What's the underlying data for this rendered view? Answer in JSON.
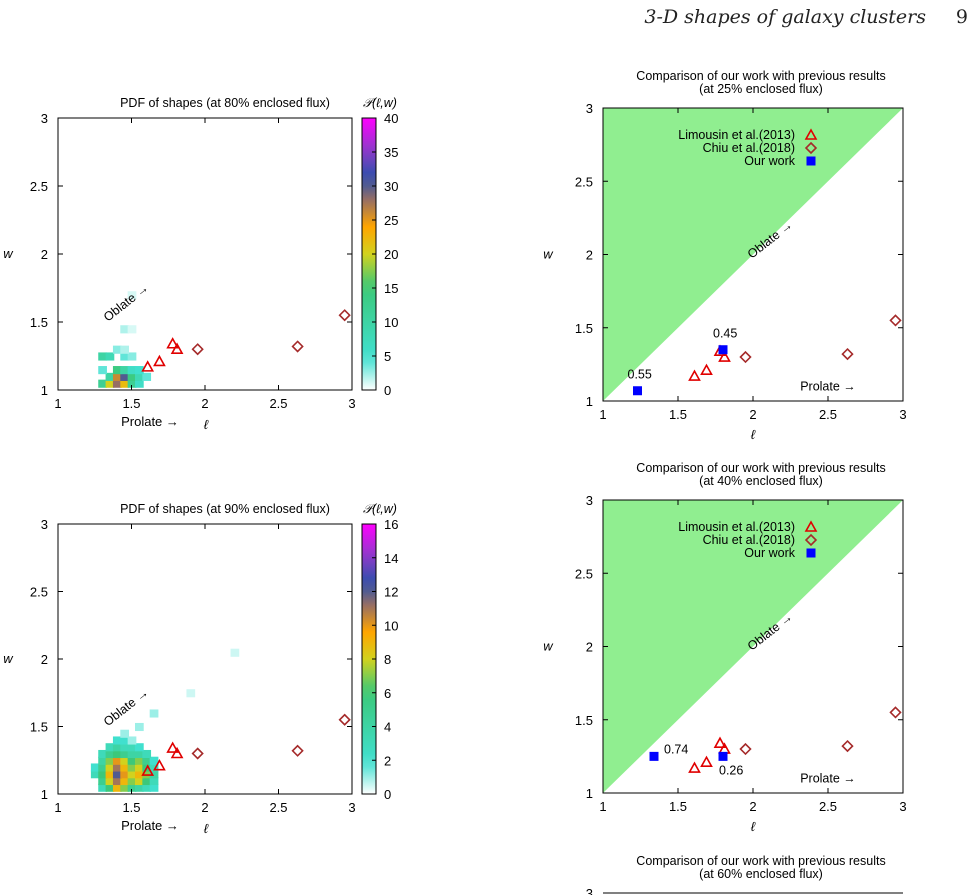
{
  "header": {
    "title": "3-D shapes of galaxy clusters",
    "page_number": "9"
  },
  "chart_data": [
    {
      "type": "heatmap",
      "title": "PDF of shapes (at 80% enclosed flux)",
      "xlabel": "ℓ",
      "ylabel": "w",
      "xlim": [
        1,
        3
      ],
      "ylim": [
        1,
        3
      ],
      "xticks": [
        "1",
        "1.5",
        "2",
        "2.5",
        "3"
      ],
      "yticks": [
        "1",
        "1.5",
        "2",
        "2.5",
        "3"
      ],
      "annotations": {
        "oblate": "Oblate →",
        "prolate": "Prolate →"
      },
      "colorbar": {
        "label": "𝒫(ℓ,w)",
        "range": [
          0,
          40
        ],
        "ticks": [
          "0",
          "5",
          "10",
          "15",
          "20",
          "25",
          "30",
          "35",
          "40"
        ]
      },
      "cells": [
        {
          "x": 1.3,
          "y": 1.05,
          "v": 12
        },
        {
          "x": 1.35,
          "y": 1.05,
          "v": 20
        },
        {
          "x": 1.4,
          "y": 1.05,
          "v": 28
        },
        {
          "x": 1.45,
          "y": 1.05,
          "v": 22
        },
        {
          "x": 1.5,
          "y": 1.05,
          "v": 12
        },
        {
          "x": 1.55,
          "y": 1.05,
          "v": 6
        },
        {
          "x": 1.35,
          "y": 1.1,
          "v": 10
        },
        {
          "x": 1.4,
          "y": 1.1,
          "v": 26
        },
        {
          "x": 1.45,
          "y": 1.1,
          "v": 30
        },
        {
          "x": 1.5,
          "y": 1.1,
          "v": 14
        },
        {
          "x": 1.55,
          "y": 1.1,
          "v": 8
        },
        {
          "x": 1.6,
          "y": 1.1,
          "v": 4
        },
        {
          "x": 1.3,
          "y": 1.15,
          "v": 4
        },
        {
          "x": 1.4,
          "y": 1.15,
          "v": 14
        },
        {
          "x": 1.45,
          "y": 1.15,
          "v": 10
        },
        {
          "x": 1.5,
          "y": 1.15,
          "v": 6
        },
        {
          "x": 1.55,
          "y": 1.15,
          "v": 5
        },
        {
          "x": 1.3,
          "y": 1.25,
          "v": 10
        },
        {
          "x": 1.35,
          "y": 1.25,
          "v": 8
        },
        {
          "x": 1.45,
          "y": 1.25,
          "v": 4
        },
        {
          "x": 1.5,
          "y": 1.25,
          "v": 3
        },
        {
          "x": 1.4,
          "y": 1.3,
          "v": 3
        },
        {
          "x": 1.45,
          "y": 1.3,
          "v": 2
        },
        {
          "x": 1.45,
          "y": 1.45,
          "v": 2
        },
        {
          "x": 1.5,
          "y": 1.45,
          "v": 1
        },
        {
          "x": 1.5,
          "y": 1.7,
          "v": 1
        }
      ],
      "series": [
        {
          "name": "Limousin et al.(2013)",
          "marker": "triangle",
          "color": "#e00000",
          "x": [
            1.61,
            1.69,
            1.78,
            1.81
          ],
          "y": [
            1.17,
            1.21,
            1.34,
            1.3
          ]
        },
        {
          "name": "Chiu et al.(2018)",
          "marker": "diamond",
          "color": "#a52a2a",
          "x": [
            1.95,
            2.63,
            2.95
          ],
          "y": [
            1.3,
            1.32,
            1.55
          ]
        }
      ]
    },
    {
      "type": "scatter",
      "title": "Comparison of our work with previous results",
      "subtitle": "(at 25% enclosed flux)",
      "xlabel": "ℓ",
      "ylabel": "w",
      "xlim": [
        1,
        3
      ],
      "ylim": [
        1,
        3
      ],
      "xticks": [
        "1",
        "1.5",
        "2",
        "2.5",
        "3"
      ],
      "yticks": [
        "1",
        "1.5",
        "2",
        "2.5",
        "3"
      ],
      "annotations": {
        "oblate": "Oblate →",
        "prolate": "Prolate →"
      },
      "legend": [
        "Limousin et al.(2013)",
        "Chiu et al.(2018)",
        "Our work"
      ],
      "legend_position": "top-left",
      "region_color": "#90ee90",
      "series": [
        {
          "name": "Limousin et al.(2013)",
          "marker": "triangle",
          "color": "#e00000",
          "x": [
            1.61,
            1.69,
            1.78,
            1.81
          ],
          "y": [
            1.17,
            1.21,
            1.34,
            1.3
          ]
        },
        {
          "name": "Chiu et al.(2018)",
          "marker": "diamond",
          "color": "#a52a2a",
          "x": [
            1.95,
            2.63,
            2.95
          ],
          "y": [
            1.3,
            1.32,
            1.55
          ]
        },
        {
          "name": "Our work",
          "marker": "square",
          "color": "#0000ff",
          "x": [
            1.23,
            1.8
          ],
          "y": [
            1.07,
            1.35
          ],
          "labels": [
            "0.55",
            "0.45"
          ]
        }
      ]
    },
    {
      "type": "heatmap",
      "title": "PDF of shapes (at 90% enclosed flux)",
      "xlabel": "ℓ",
      "ylabel": "w",
      "xlim": [
        1,
        3
      ],
      "ylim": [
        1,
        3
      ],
      "xticks": [
        "1",
        "1.5",
        "2",
        "2.5",
        "3"
      ],
      "yticks": [
        "1",
        "1.5",
        "2",
        "2.5",
        "3"
      ],
      "annotations": {
        "oblate": "Oblate →",
        "prolate": "Prolate →"
      },
      "colorbar": {
        "label": "𝒫(ℓ,w)",
        "range": [
          0,
          16
        ],
        "ticks": [
          "0",
          "2",
          "4",
          "6",
          "8",
          "10",
          "12",
          "14",
          "16"
        ]
      },
      "cells": [
        {
          "x": 1.3,
          "y": 1.05,
          "v": 3
        },
        {
          "x": 1.35,
          "y": 1.05,
          "v": 6
        },
        {
          "x": 1.4,
          "y": 1.05,
          "v": 9
        },
        {
          "x": 1.45,
          "y": 1.05,
          "v": 7
        },
        {
          "x": 1.5,
          "y": 1.05,
          "v": 5
        },
        {
          "x": 1.55,
          "y": 1.05,
          "v": 4
        },
        {
          "x": 1.6,
          "y": 1.05,
          "v": 3
        },
        {
          "x": 1.65,
          "y": 1.05,
          "v": 2
        },
        {
          "x": 1.3,
          "y": 1.1,
          "v": 5
        },
        {
          "x": 1.35,
          "y": 1.1,
          "v": 8
        },
        {
          "x": 1.4,
          "y": 1.1,
          "v": 11
        },
        {
          "x": 1.45,
          "y": 1.1,
          "v": 9
        },
        {
          "x": 1.5,
          "y": 1.1,
          "v": 7
        },
        {
          "x": 1.55,
          "y": 1.1,
          "v": 8
        },
        {
          "x": 1.6,
          "y": 1.1,
          "v": 6
        },
        {
          "x": 1.65,
          "y": 1.1,
          "v": 3
        },
        {
          "x": 1.25,
          "y": 1.15,
          "v": 3
        },
        {
          "x": 1.3,
          "y": 1.15,
          "v": 6
        },
        {
          "x": 1.35,
          "y": 1.15,
          "v": 9
        },
        {
          "x": 1.4,
          "y": 1.15,
          "v": 12
        },
        {
          "x": 1.45,
          "y": 1.15,
          "v": 10
        },
        {
          "x": 1.5,
          "y": 1.15,
          "v": 8
        },
        {
          "x": 1.55,
          "y": 1.15,
          "v": 9
        },
        {
          "x": 1.6,
          "y": 1.15,
          "v": 7
        },
        {
          "x": 1.65,
          "y": 1.15,
          "v": 4
        },
        {
          "x": 1.25,
          "y": 1.2,
          "v": 2
        },
        {
          "x": 1.3,
          "y": 1.2,
          "v": 5
        },
        {
          "x": 1.35,
          "y": 1.2,
          "v": 8
        },
        {
          "x": 1.4,
          "y": 1.2,
          "v": 11
        },
        {
          "x": 1.45,
          "y": 1.2,
          "v": 9
        },
        {
          "x": 1.5,
          "y": 1.2,
          "v": 7
        },
        {
          "x": 1.55,
          "y": 1.2,
          "v": 8
        },
        {
          "x": 1.6,
          "y": 1.2,
          "v": 6
        },
        {
          "x": 1.65,
          "y": 1.2,
          "v": 3
        },
        {
          "x": 1.3,
          "y": 1.25,
          "v": 4
        },
        {
          "x": 1.35,
          "y": 1.25,
          "v": 7
        },
        {
          "x": 1.4,
          "y": 1.25,
          "v": 10
        },
        {
          "x": 1.45,
          "y": 1.25,
          "v": 8
        },
        {
          "x": 1.5,
          "y": 1.25,
          "v": 6
        },
        {
          "x": 1.55,
          "y": 1.25,
          "v": 7
        },
        {
          "x": 1.6,
          "y": 1.25,
          "v": 5
        },
        {
          "x": 1.65,
          "y": 1.25,
          "v": 2
        },
        {
          "x": 1.3,
          "y": 1.3,
          "v": 3
        },
        {
          "x": 1.35,
          "y": 1.3,
          "v": 5
        },
        {
          "x": 1.4,
          "y": 1.3,
          "v": 6
        },
        {
          "x": 1.45,
          "y": 1.3,
          "v": 5
        },
        {
          "x": 1.5,
          "y": 1.3,
          "v": 4
        },
        {
          "x": 1.55,
          "y": 1.3,
          "v": 4
        },
        {
          "x": 1.6,
          "y": 1.3,
          "v": 3
        },
        {
          "x": 1.35,
          "y": 1.35,
          "v": 3
        },
        {
          "x": 1.4,
          "y": 1.35,
          "v": 4
        },
        {
          "x": 1.45,
          "y": 1.35,
          "v": 3
        },
        {
          "x": 1.5,
          "y": 1.35,
          "v": 3
        },
        {
          "x": 1.55,
          "y": 1.35,
          "v": 2
        },
        {
          "x": 1.4,
          "y": 1.4,
          "v": 2
        },
        {
          "x": 1.45,
          "y": 1.4,
          "v": 2
        },
        {
          "x": 1.5,
          "y": 1.4,
          "v": 1
        },
        {
          "x": 1.45,
          "y": 1.45,
          "v": 1
        },
        {
          "x": 1.55,
          "y": 1.5,
          "v": 1
        },
        {
          "x": 1.65,
          "y": 1.6,
          "v": 1
        },
        {
          "x": 1.9,
          "y": 1.75,
          "v": 0.5
        },
        {
          "x": 2.2,
          "y": 2.05,
          "v": 0.5
        }
      ],
      "series": [
        {
          "name": "Limousin et al.(2013)",
          "marker": "triangle",
          "color": "#e00000",
          "x": [
            1.61,
            1.69,
            1.78,
            1.81
          ],
          "y": [
            1.17,
            1.21,
            1.34,
            1.3
          ]
        },
        {
          "name": "Chiu et al.(2018)",
          "marker": "diamond",
          "color": "#a52a2a",
          "x": [
            1.95,
            2.63,
            2.95
          ],
          "y": [
            1.3,
            1.32,
            1.55
          ]
        }
      ]
    },
    {
      "type": "scatter",
      "title": "Comparison of our work with previous results",
      "subtitle": "(at 40% enclosed flux)",
      "xlabel": "ℓ",
      "ylabel": "w",
      "xlim": [
        1,
        3
      ],
      "ylim": [
        1,
        3
      ],
      "xticks": [
        "1",
        "1.5",
        "2",
        "2.5",
        "3"
      ],
      "yticks": [
        "1",
        "1.5",
        "2",
        "2.5",
        "3"
      ],
      "annotations": {
        "oblate": "Oblate →",
        "prolate": "Prolate →"
      },
      "legend": [
        "Limousin et al.(2013)",
        "Chiu et al.(2018)",
        "Our work"
      ],
      "legend_position": "top-left",
      "region_color": "#90ee90",
      "series": [
        {
          "name": "Limousin et al.(2013)",
          "marker": "triangle",
          "color": "#e00000",
          "x": [
            1.61,
            1.69,
            1.78,
            1.81
          ],
          "y": [
            1.17,
            1.21,
            1.34,
            1.3
          ]
        },
        {
          "name": "Chiu et al.(2018)",
          "marker": "diamond",
          "color": "#a52a2a",
          "x": [
            1.95,
            2.63,
            2.95
          ],
          "y": [
            1.3,
            1.32,
            1.55
          ]
        },
        {
          "name": "Our work",
          "marker": "square",
          "color": "#0000ff",
          "x": [
            1.34,
            1.8
          ],
          "y": [
            1.25,
            1.25
          ],
          "labels": [
            "0.74",
            "0.26"
          ]
        }
      ]
    },
    {
      "type": "scatter",
      "title": "Comparison of our work with previous results",
      "subtitle": "(at 60% enclosed flux)",
      "xlim": [
        1,
        3
      ],
      "ylim": [
        1,
        3
      ],
      "yticks": [
        "3"
      ]
    }
  ]
}
